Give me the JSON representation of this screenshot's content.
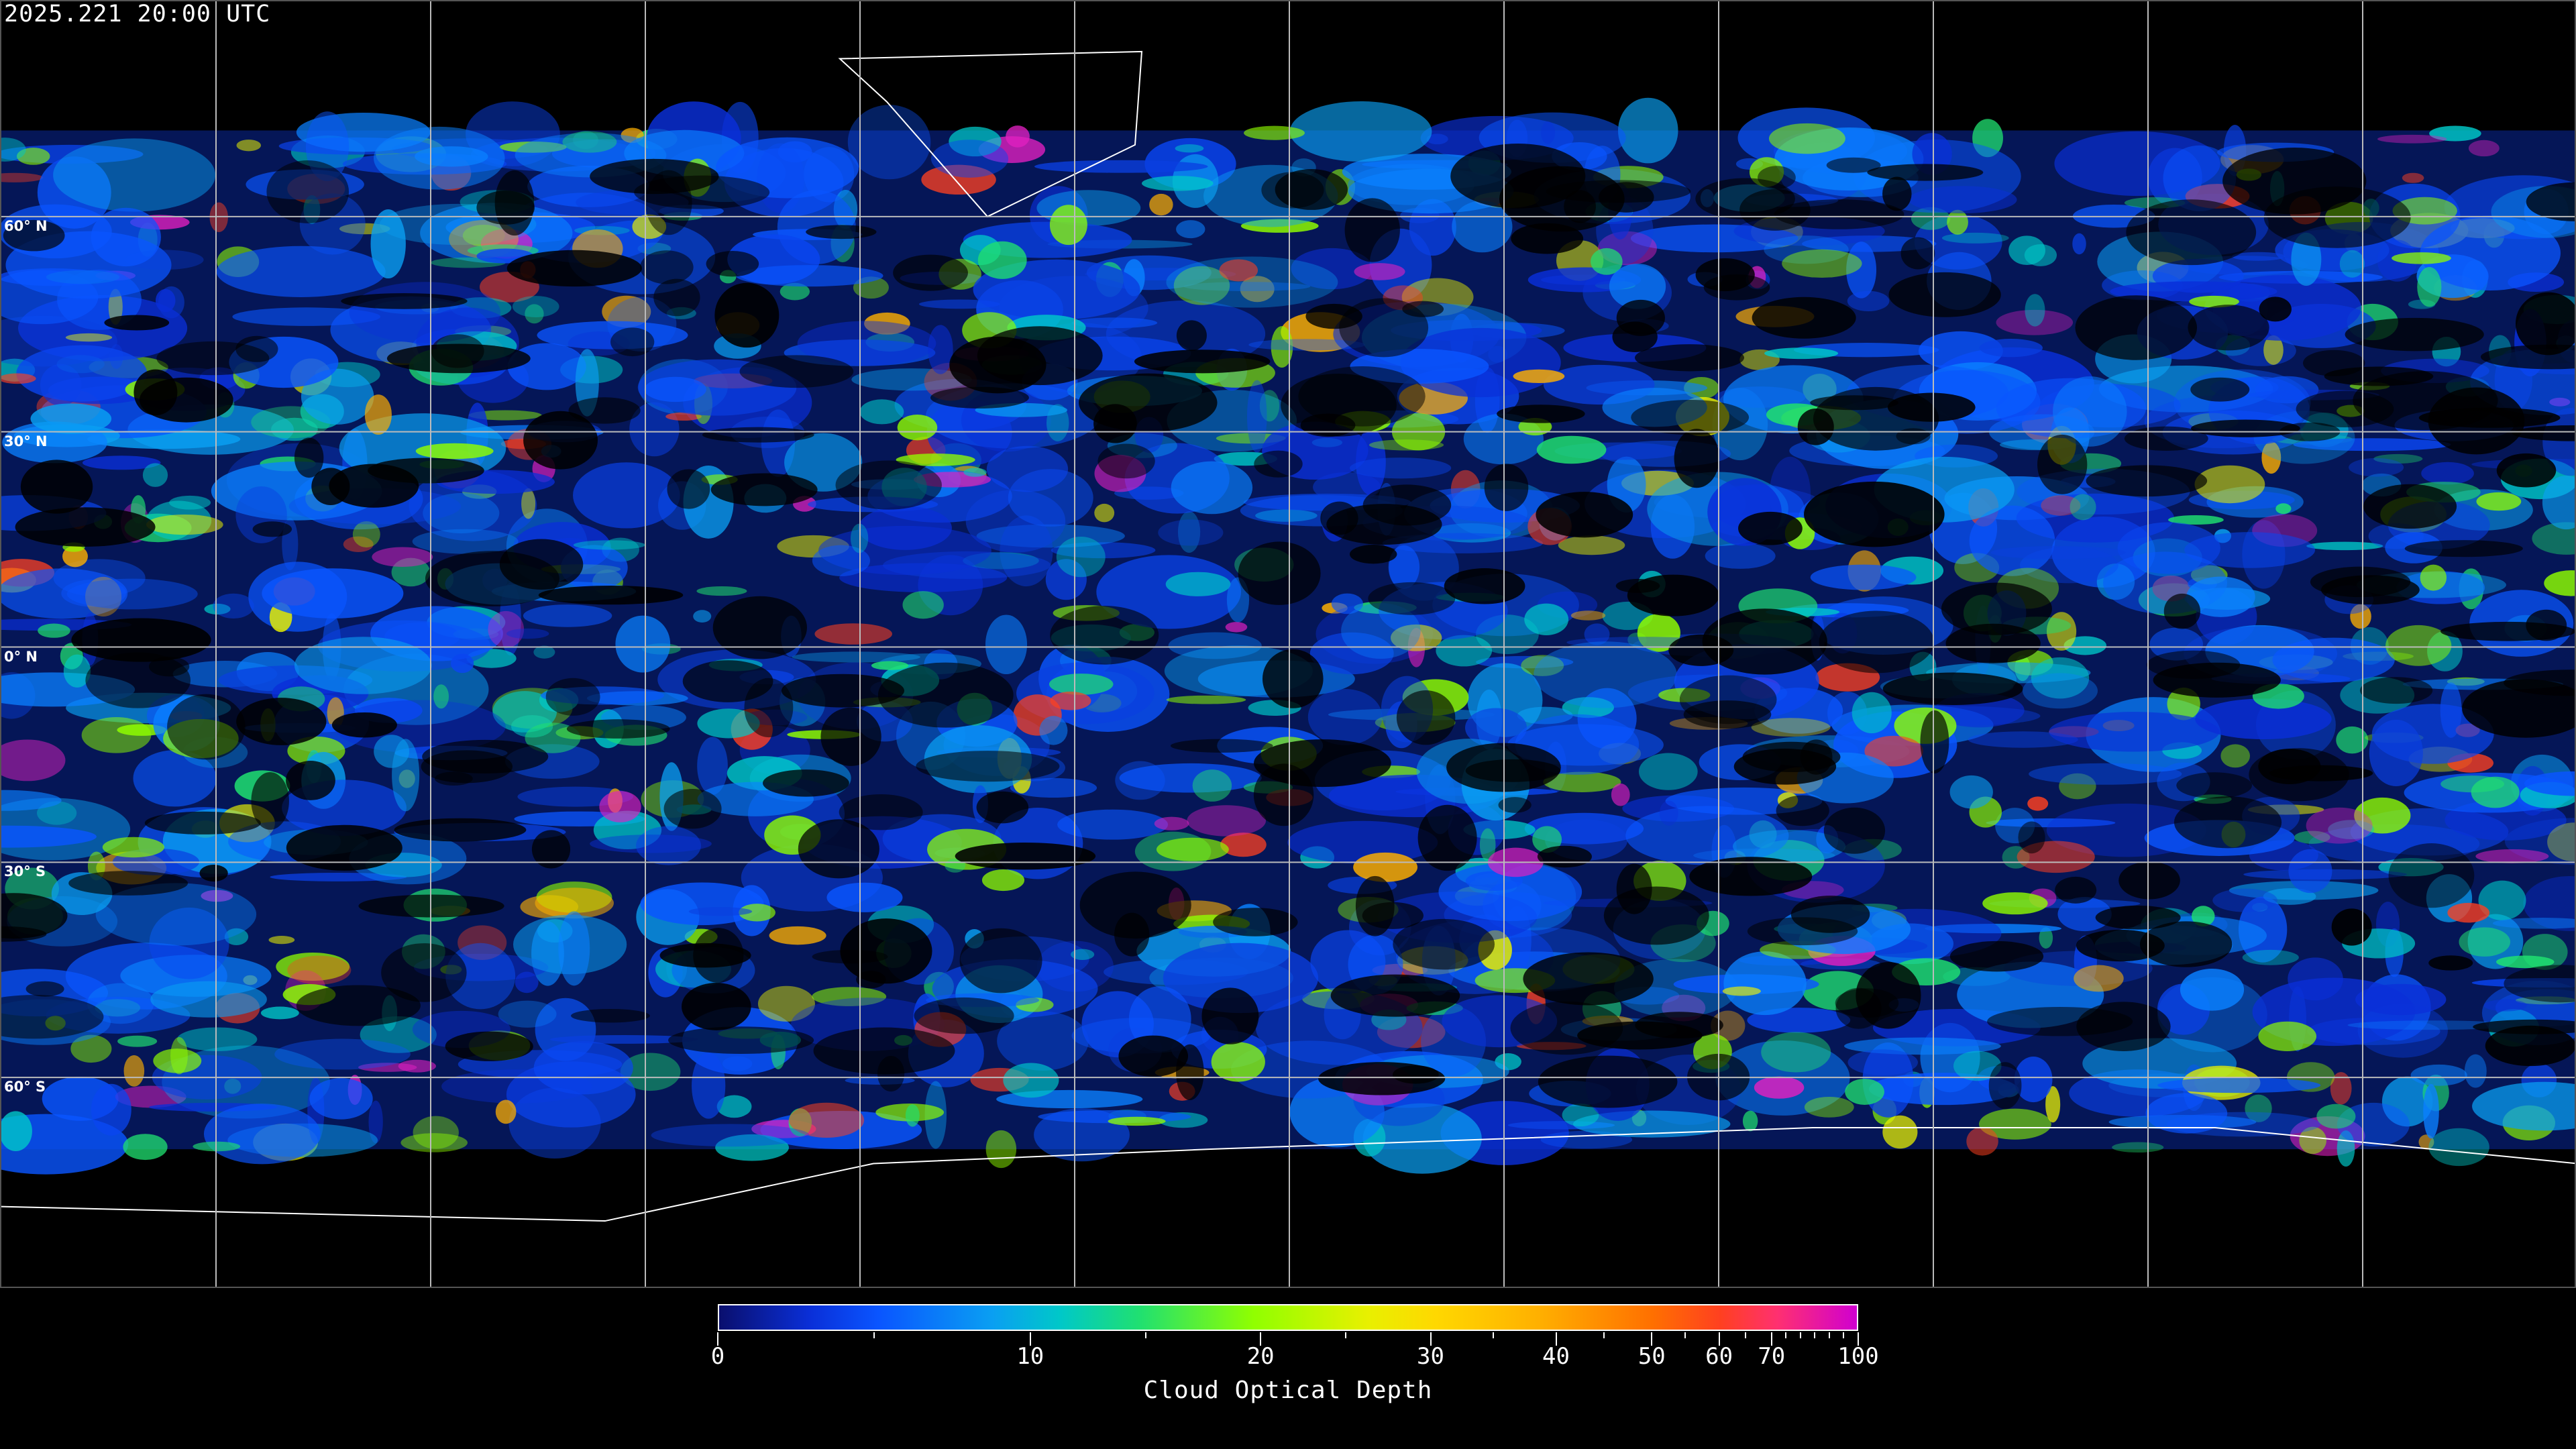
{
  "title": "2025.221 20:00 UTC",
  "map": {
    "projection": "equirectangular",
    "grid_spacing_deg": 30,
    "lat_labels": [
      "60° N",
      "30° N",
      "0° N",
      "30° S",
      "60° S"
    ],
    "lat_values": [
      60,
      30,
      0,
      -30,
      -60
    ],
    "lon_grid_values": [
      -150,
      -120,
      -90,
      -60,
      -30,
      0,
      30,
      60,
      90,
      120,
      150
    ],
    "background_color": "#000000",
    "grid_color": "#bbbbbb",
    "coastline_color": "#ffffff"
  },
  "colorbar": {
    "label": "Cloud Optical Depth",
    "range": [
      0,
      100
    ],
    "scale": "nonlinear",
    "major_ticks": [
      0,
      10,
      20,
      30,
      40,
      50,
      60,
      70,
      100
    ],
    "major_tick_labels": [
      "0",
      "10",
      "20",
      "30",
      "40",
      "50",
      "60",
      "70",
      "100"
    ],
    "minor_ticks": [
      5,
      15,
      25,
      35,
      45,
      55,
      65,
      75,
      80,
      85,
      90,
      95
    ],
    "colors": [
      "#0a0f6e",
      "#0a55ff",
      "#00c8c8",
      "#90ff00",
      "#e8f000",
      "#ffb000",
      "#ff7000",
      "#ff3070",
      "#d000d0"
    ]
  }
}
